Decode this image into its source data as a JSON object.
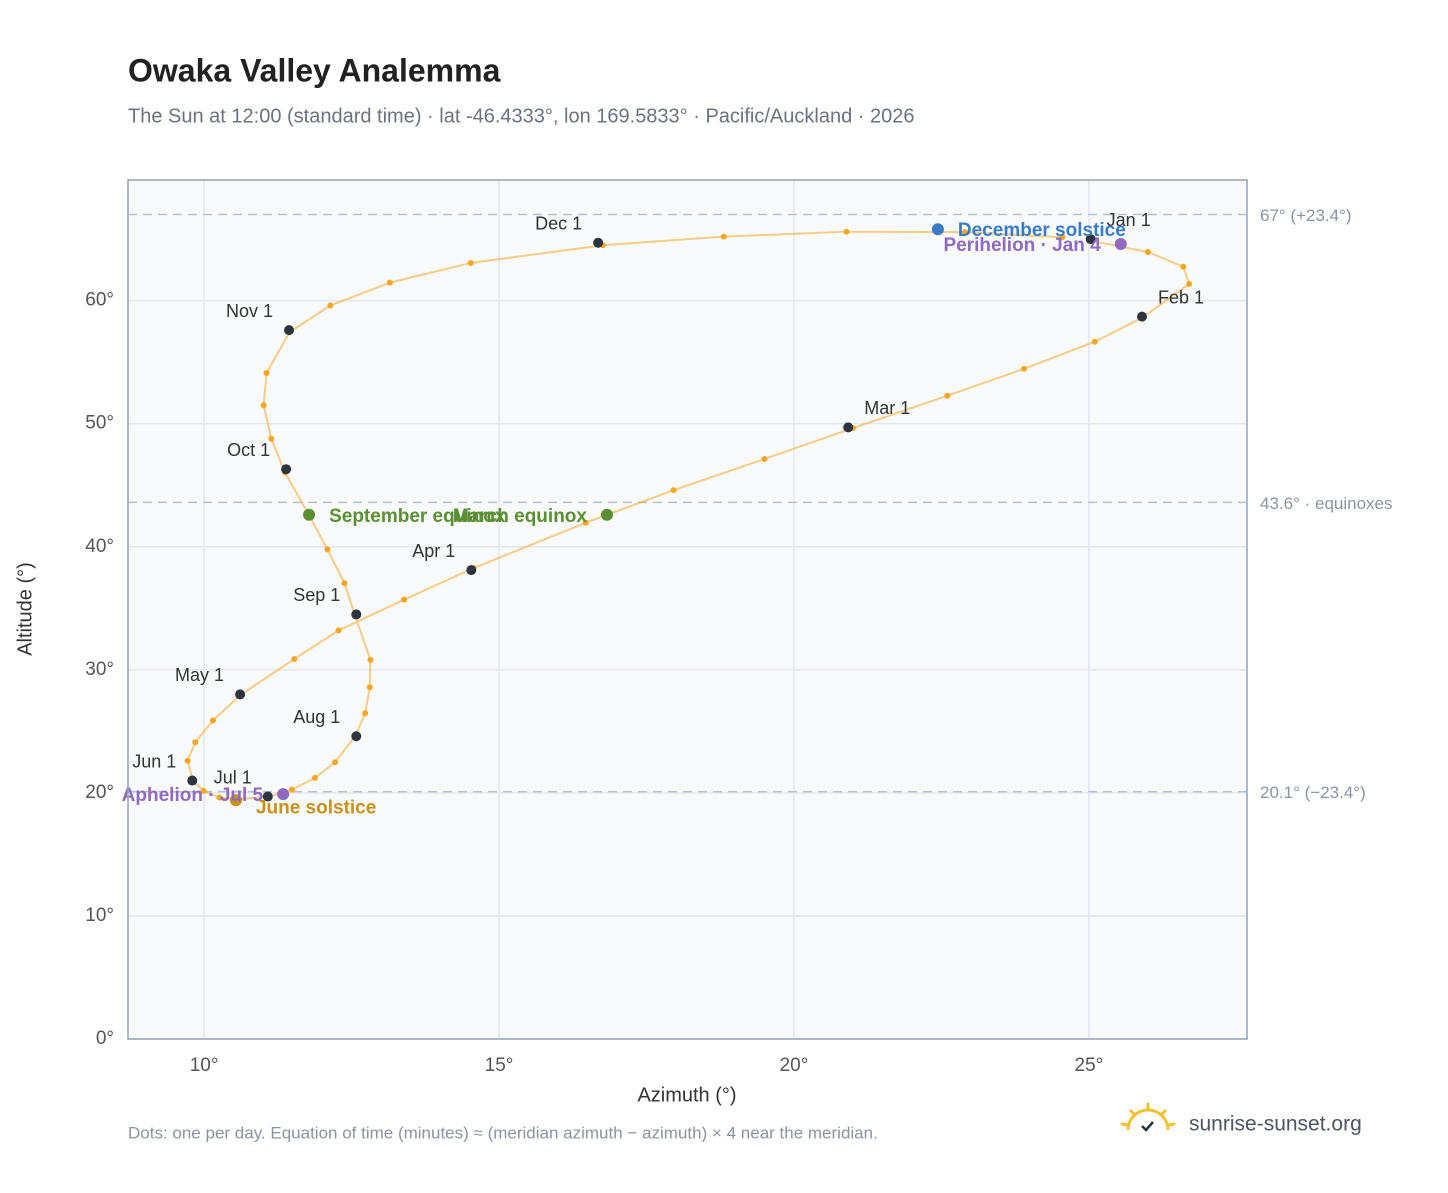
{
  "chart_data": {
    "type": "scatter",
    "title": "Owaka Valley Analemma",
    "subtitle": "The Sun at 12:00 (standard time) · lat -46.4333°, lon 169.5833° · Pacific/Auckland · 2026",
    "xlabel": "Azimuth (°)",
    "ylabel": "Altitude (°)",
    "xlim": [
      8.71,
      27.68
    ],
    "ylim": [
      0,
      69.8
    ],
    "xticks": [
      {
        "value": 10,
        "label": "10°"
      },
      {
        "value": 15,
        "label": "15°"
      },
      {
        "value": 20,
        "label": "20°"
      },
      {
        "value": 25,
        "label": "25°"
      }
    ],
    "yticks": [
      {
        "value": 0,
        "label": "0°"
      },
      {
        "value": 10,
        "label": "10°"
      },
      {
        "value": 20,
        "label": "20°"
      },
      {
        "value": 30,
        "label": "30°"
      },
      {
        "value": 40,
        "label": "40°"
      },
      {
        "value": 50,
        "label": "50°"
      },
      {
        "value": 60,
        "label": "60°"
      }
    ],
    "grid": true,
    "color": "#f5a623",
    "x": [
      25.0,
      26.0,
      26.6,
      26.7,
      25.9,
      25.1,
      23.9,
      22.6,
      21.0,
      19.5,
      17.96,
      16.47,
      14.57,
      13.39,
      12.28,
      11.53,
      10.62,
      10.15,
      9.85,
      9.72,
      9.81,
      9.99,
      10.26,
      10.59,
      11.11,
      11.49,
      11.88,
      12.22,
      12.57,
      12.73,
      12.81,
      12.82,
      12.56,
      12.38,
      12.09,
      11.78,
      11.37,
      11.14,
      11.01,
      11.06,
      11.45,
      12.14,
      13.15,
      14.52,
      16.76,
      18.81,
      20.89,
      22.9,
      24.55
    ],
    "values": [
      64.9,
      63.95,
      62.75,
      61.35,
      58.6,
      56.66,
      54.46,
      52.27,
      49.64,
      47.13,
      44.6,
      41.95,
      38.27,
      35.7,
      33.2,
      30.88,
      27.96,
      25.89,
      24.11,
      22.61,
      20.99,
      20.16,
      19.62,
      19.48,
      19.71,
      20.26,
      21.22,
      22.49,
      24.66,
      26.47,
      28.58,
      30.81,
      34.38,
      37.04,
      39.79,
      42.55,
      46.04,
      48.77,
      51.5,
      54.13,
      57.44,
      59.6,
      61.46,
      63.06,
      64.5,
      65.2,
      65.6,
      65.56,
      65.15
    ],
    "month_markers": {
      "color": "#2d3440",
      "categories": [
        "Jan 1",
        "Feb 1",
        "Mar 1",
        "Apr 1",
        "May 1",
        "Jun 1",
        "Jul 1",
        "Aug 1",
        "Sep 1",
        "Oct 1",
        "Nov 1",
        "Dec 1"
      ],
      "x": [
        25.03,
        25.9,
        20.92,
        14.53,
        10.61,
        9.8,
        11.08,
        12.58,
        12.58,
        11.39,
        11.44,
        16.68
      ],
      "values": [
        65.0,
        58.7,
        49.7,
        38.1,
        28.0,
        21.0,
        19.7,
        24.6,
        34.5,
        46.3,
        57.6,
        64.7
      ]
    },
    "events": [
      {
        "label": "December solstice",
        "x": 22.44,
        "value": 65.8,
        "color": "#3a7bc8"
      },
      {
        "label": "Perihelion · Jan 4",
        "x": 25.54,
        "value": 64.6,
        "color": "#8e6bbf"
      },
      {
        "label": "March equinox",
        "x": 16.83,
        "value": 42.6,
        "color": "#5a8f32"
      },
      {
        "label": "September equinox",
        "x": 11.78,
        "value": 42.6,
        "color": "#5a8f32"
      },
      {
        "label": "June solstice",
        "x": 10.54,
        "value": 19.4,
        "color": "#c8911a"
      },
      {
        "label": "Aphelion · Jul 5",
        "x": 11.34,
        "value": 19.9,
        "color": "#8e6bbf"
      }
    ],
    "reference_lines": [
      {
        "value": 67,
        "label": "67° (+23.4°)"
      },
      {
        "value": 43.6,
        "label": "43.6° · equinoxes"
      },
      {
        "value": 20.1,
        "label": "20.1° (−23.4°)"
      }
    ],
    "note": "Dots: one per day. Equation of time (minutes) ≈ (meridian azimuth − azimuth) × 4 near the meridian.",
    "brand": "sunrise-sunset.org"
  }
}
